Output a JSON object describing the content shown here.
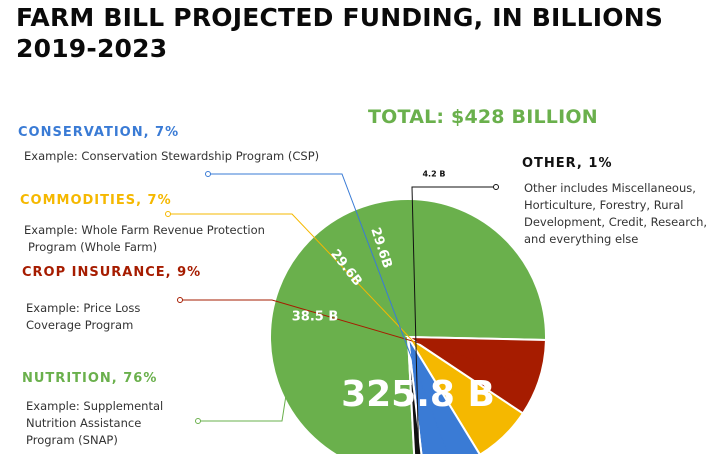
{
  "title_line1": "FARM BILL PROJECTED FUNDING, IN BILLIONS",
  "title_line2": "2019-2023",
  "total_label": "TOTAL: $428 BILLION",
  "categories": [
    {
      "key": "conservation",
      "heading": "CONSERVATION, 7%",
      "example": "Example: Conservation Stewardship Program (CSP)",
      "color": "#3a7bd5"
    },
    {
      "key": "commodities",
      "heading": "COMMODITIES, 7%",
      "example_lines": [
        "Example: Whole Farm Revenue Protection",
        "Program (Whole Farm)"
      ],
      "color": "#f5b800"
    },
    {
      "key": "crop_insurance",
      "heading": "CROP INSURANCE, 9%",
      "example_lines": [
        "Example: Price Loss",
        "Coverage Program"
      ],
      "color": "#a61c00"
    },
    {
      "key": "nutrition",
      "heading": "NUTRITION, 76%",
      "example_lines": [
        "Example: Supplemental",
        "Nutrition Assistance",
        "Program (SNAP)"
      ],
      "color": "#6ab04c"
    },
    {
      "key": "other",
      "heading": "OTHER, 1%",
      "example_lines": [
        "Other includes Miscellaneous,",
        "Horticulture, Forestry, Rural",
        "Development, Credit, Research,",
        "and everything else"
      ],
      "color": "#111111"
    }
  ],
  "chart_data": {
    "type": "pie",
    "title": "FARM BILL PROJECTED FUNDING, IN BILLIONS 2019-2023",
    "slices": [
      {
        "label": "Nutrition",
        "value": 325.8,
        "value_label": "325.8 B",
        "color": "#6ab04c"
      },
      {
        "label": "Crop Insurance",
        "value": 38.5,
        "value_label": "38.5 B",
        "color": "#a61c00"
      },
      {
        "label": "Commodities",
        "value": 29.6,
        "value_label": "29.6B",
        "color": "#f5b800"
      },
      {
        "label": "Conservation",
        "value": 29.6,
        "value_label": "29.6B",
        "color": "#3a7bd5"
      },
      {
        "label": "Other",
        "value": 4.2,
        "value_label": "4.2 B",
        "color": "#111111"
      }
    ]
  }
}
